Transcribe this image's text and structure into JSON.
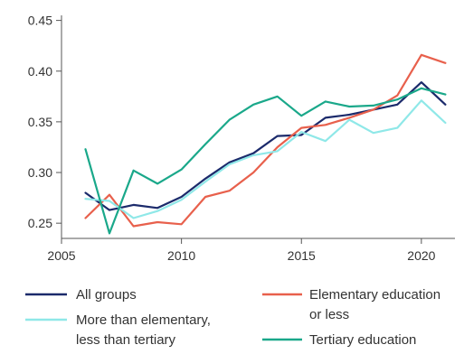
{
  "chart_data": {
    "type": "line",
    "title": "",
    "xlabel": "",
    "ylabel": "",
    "xlim": [
      2005,
      2021.4
    ],
    "ylim": [
      0.235,
      0.455
    ],
    "x_ticks": [
      2005,
      2010,
      2015,
      2020
    ],
    "x_tick_labels": [
      "2005",
      "2010",
      "2015",
      "2020"
    ],
    "y_ticks": [
      0.25,
      0.3,
      0.35,
      0.4,
      0.45
    ],
    "y_tick_labels": [
      "0.25",
      "0.30",
      "0.35",
      "0.40",
      "0.45"
    ],
    "grid": false,
    "legend_position": "bottom",
    "x": [
      2006,
      2007,
      2008,
      2009,
      2010,
      2011,
      2012,
      2013,
      2014,
      2015,
      2016,
      2017,
      2018,
      2019,
      2020,
      2021
    ],
    "series": [
      {
        "name": "All groups",
        "color": "#1b2a6b",
        "values": [
          0.28,
          0.263,
          0.268,
          0.265,
          0.276,
          0.294,
          0.31,
          0.319,
          0.336,
          0.337,
          0.354,
          0.357,
          0.362,
          0.367,
          0.389,
          0.367
        ]
      },
      {
        "name": "Elementary education or less",
        "name_lines": [
          "Elementary education",
          "or less"
        ],
        "color": "#e8604c",
        "values": [
          0.255,
          0.278,
          0.247,
          0.251,
          0.249,
          0.276,
          0.282,
          0.3,
          0.325,
          0.344,
          0.347,
          0.354,
          0.362,
          0.376,
          0.416,
          0.408
        ]
      },
      {
        "name": "More than elementary, less than tertiary",
        "name_lines": [
          "More than elementary,",
          "less than tertiary"
        ],
        "color": "#8fe8e8",
        "values": [
          0.274,
          0.272,
          0.255,
          0.262,
          0.273,
          0.291,
          0.308,
          0.317,
          0.321,
          0.34,
          0.331,
          0.352,
          0.339,
          0.344,
          0.371,
          0.349
        ]
      },
      {
        "name": "Tertiary education",
        "color": "#1aa88a",
        "values": [
          0.323,
          0.24,
          0.302,
          0.289,
          0.303,
          0.328,
          0.352,
          0.367,
          0.375,
          0.356,
          0.37,
          0.365,
          0.366,
          0.372,
          0.383,
          0.377
        ]
      }
    ]
  }
}
